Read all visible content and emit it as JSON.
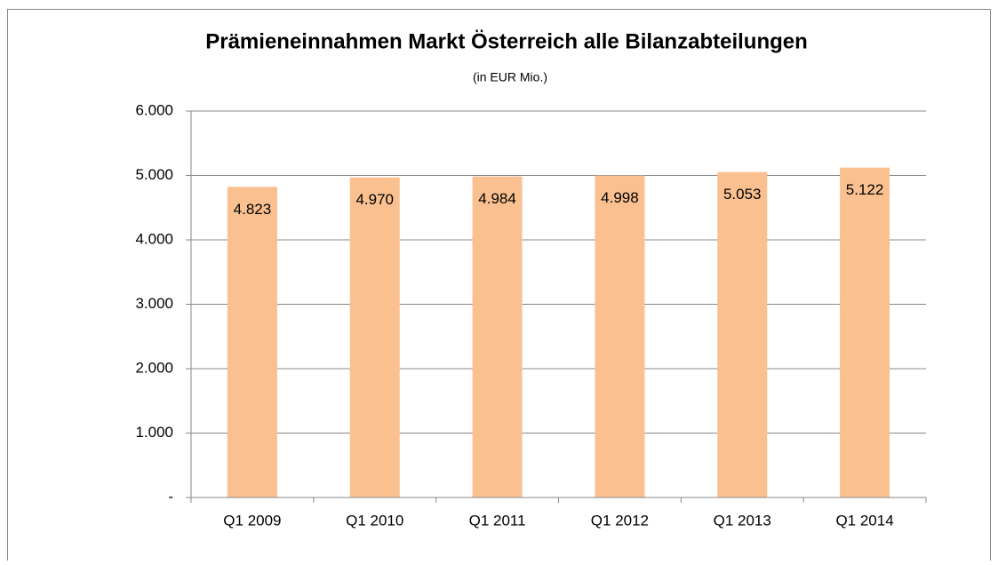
{
  "chart_data": {
    "type": "bar",
    "title": "Prämieneinnahmen Markt Österreich alle Bilanzabteilungen",
    "subtitle": "(in EUR Mio.)",
    "categories": [
      "Q1 2009",
      "Q1 2010",
      "Q1 2011",
      "Q1 2012",
      "Q1 2013",
      "Q1 2014"
    ],
    "values": [
      4823,
      4970,
      4984,
      4998,
      5053,
      5122
    ],
    "value_labels": [
      "4.823",
      "4.970",
      "4.984",
      "4.998",
      "5.053",
      "5.122"
    ],
    "color": "#fac090",
    "ylim": [
      0,
      6000
    ],
    "yticks": [
      {
        "value": 0,
        "label": "-"
      },
      {
        "value": 1000,
        "label": "1.000"
      },
      {
        "value": 2000,
        "label": "2.000"
      },
      {
        "value": 3000,
        "label": "3.000"
      },
      {
        "value": 4000,
        "label": "4.000"
      },
      {
        "value": 5000,
        "label": "5.000"
      },
      {
        "value": 6000,
        "label": "6.000"
      }
    ],
    "grid": true
  }
}
